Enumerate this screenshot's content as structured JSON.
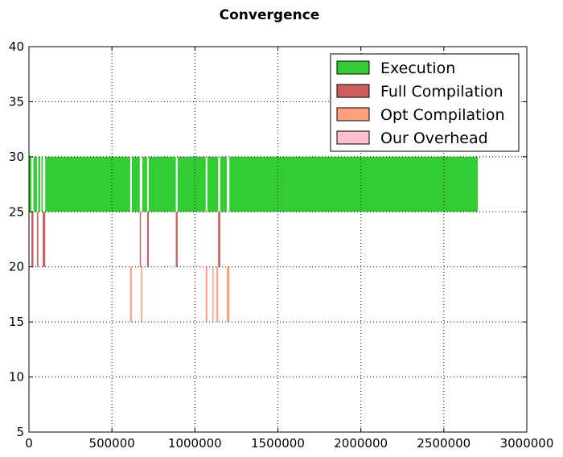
{
  "chart_data": {
    "type": "bar",
    "orientation": "horizontal-broken-bars",
    "title": "Convergence",
    "xlabel": "",
    "ylabel": "",
    "xlim": [
      0,
      3000000
    ],
    "ylim": [
      5,
      40
    ],
    "xticks": [
      "0",
      "500000",
      "1000000",
      "1500000",
      "2000000",
      "2500000",
      "3000000"
    ],
    "yticks": [
      "5",
      "10",
      "15",
      "20",
      "25",
      "30",
      "35",
      "40"
    ],
    "grid": true,
    "legend_position": "top-right",
    "series": [
      {
        "name": "Execution",
        "color": "#32cd32",
        "y_range": [
          25,
          30
        ],
        "spans": [
          [
            0,
            15000
          ],
          [
            27000,
            48000
          ],
          [
            56000,
            68000
          ],
          [
            75000,
            83000
          ],
          [
            98000,
            610000
          ],
          [
            620000,
            668000
          ],
          [
            683000,
            712000
          ],
          [
            722000,
            885000
          ],
          [
            896000,
            1065000
          ],
          [
            1075000,
            1140000
          ],
          [
            1153000,
            1192000
          ],
          [
            1208000,
            2705000
          ]
        ]
      },
      {
        "name": "Full Compilation",
        "color": "#cd5c5c",
        "y_range": [
          20,
          25
        ],
        "spans": [
          [
            15000,
            27000
          ],
          [
            48000,
            56000
          ],
          [
            83000,
            98000
          ],
          [
            668000,
            675000
          ],
          [
            712000,
            722000
          ],
          [
            885000,
            896000
          ],
          [
            1140000,
            1153000
          ]
        ]
      },
      {
        "name": "Opt Compilation",
        "color": "#ffa07a",
        "y_range": [
          15,
          20
        ],
        "spans": [
          [
            610000,
            620000
          ],
          [
            675000,
            683000
          ],
          [
            1065000,
            1075000
          ],
          [
            1105000,
            1112000
          ],
          [
            1130000,
            1140000
          ],
          [
            1192000,
            1208000
          ]
        ]
      },
      {
        "name": "Our Overhead",
        "color": "#ffc0cb",
        "y_range": [
          10,
          15
        ],
        "spans": []
      }
    ]
  }
}
